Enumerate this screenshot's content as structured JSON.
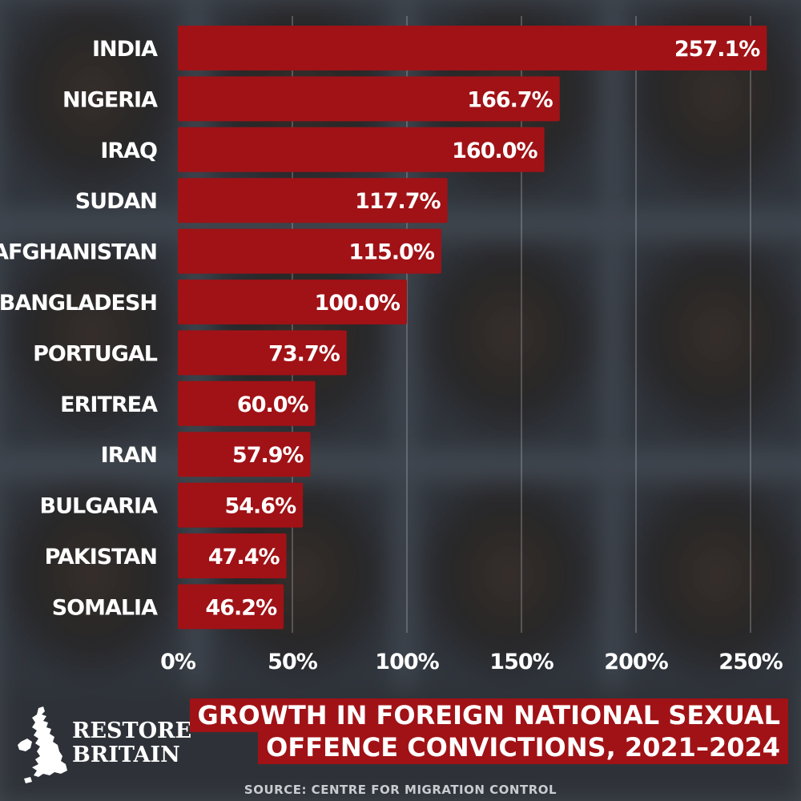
{
  "chart_data": {
    "type": "bar",
    "orientation": "horizontal",
    "title": "GROWTH IN FOREIGN NATIONAL SEXUAL OFFENCE CONVICTIONS, 2021–2024",
    "title_lines": [
      "GROWTH IN FOREIGN NATIONAL SEXUAL",
      "OFFENCE CONVICTIONS, 2021–2024"
    ],
    "categories": [
      "INDIA",
      "NIGERIA",
      "IRAQ",
      "SUDAN",
      "AFGHANISTAN",
      "BANGLADESH",
      "PORTUGAL",
      "ERITREA",
      "IRAN",
      "BULGARIA",
      "PAKISTAN",
      "SOMALIA"
    ],
    "values": [
      257.1,
      166.7,
      160.0,
      117.7,
      115.0,
      100.0,
      73.7,
      60.0,
      57.9,
      54.6,
      47.4,
      46.2
    ],
    "value_labels": [
      "257.1%",
      "166.7%",
      "160.0%",
      "117.7%",
      "115.0%",
      "100.0%",
      "73.7%",
      "60.0%",
      "57.9%",
      "54.6%",
      "47.4%",
      "46.2%"
    ],
    "xlim": [
      0,
      260
    ],
    "ticks": [
      0,
      50,
      100,
      150,
      200,
      250
    ],
    "tick_labels": [
      "0%",
      "50%",
      "100%",
      "150%",
      "200%",
      "250%"
    ],
    "xlabel": "",
    "ylabel": "",
    "grid": true,
    "bar_color": "#a01216",
    "source": "SOURCE: CENTRE FOR MIGRATION CONTROL"
  },
  "logo": {
    "line1": "RESTORE",
    "line2": "BRITAIN",
    "icon": "uk-map-icon"
  }
}
